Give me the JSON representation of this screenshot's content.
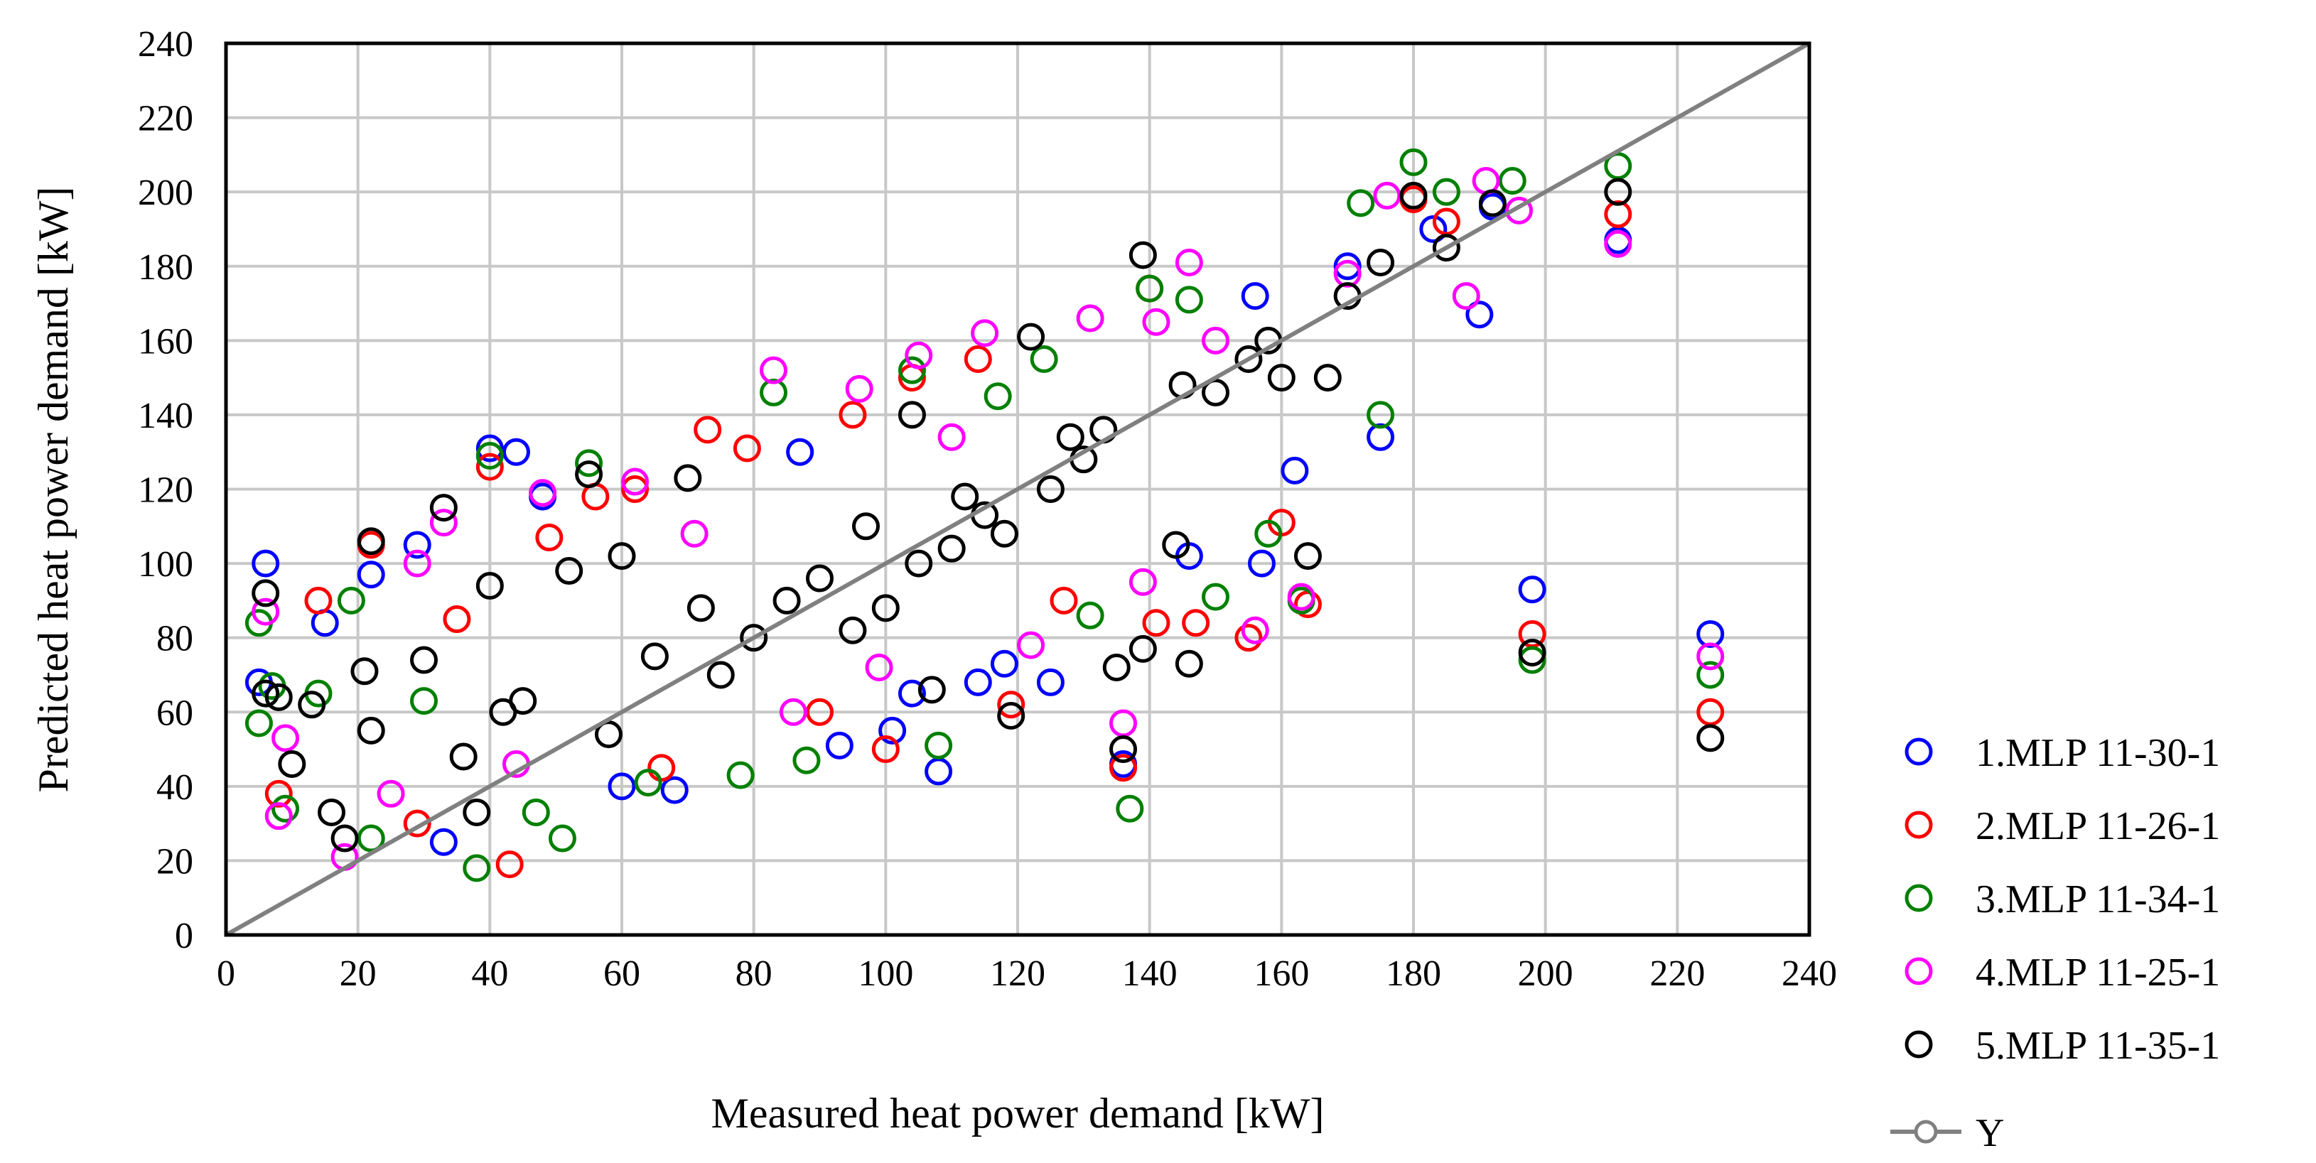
{
  "chart_data": {
    "type": "scatter",
    "title": "",
    "xlabel": "Measured heat power demand [kW]",
    "ylabel": "Predicted heat power demand [kW]",
    "xlim": [
      0,
      240
    ],
    "ylim": [
      0,
      240
    ],
    "x_ticks": [
      "0",
      "20",
      "40",
      "60",
      "80",
      "100",
      "120",
      "140",
      "160",
      "180",
      "200",
      "220",
      "240"
    ],
    "y_ticks": [
      "0",
      "20",
      "40",
      "60",
      "80",
      "100",
      "120",
      "140",
      "160",
      "180",
      "200",
      "220",
      "240"
    ],
    "grid": true,
    "legend_position": "right",
    "series": [
      {
        "name": "1.MLP 11-30-1",
        "color": "#0000ff",
        "marker": "open-circle",
        "points": [
          [
            6,
            100
          ],
          [
            5,
            68
          ],
          [
            15,
            84
          ],
          [
            22,
            97
          ],
          [
            29,
            105
          ],
          [
            40,
            131
          ],
          [
            48,
            118
          ],
          [
            87,
            130
          ],
          [
            93,
            51
          ],
          [
            101,
            55
          ],
          [
            114,
            68
          ],
          [
            125,
            68
          ],
          [
            136,
            46
          ],
          [
            156,
            172
          ],
          [
            162,
            125
          ],
          [
            175,
            134
          ],
          [
            190,
            167
          ],
          [
            198,
            93
          ],
          [
            211,
            187
          ],
          [
            225,
            81
          ],
          [
            192,
            196
          ],
          [
            170,
            180
          ],
          [
            146,
            102
          ],
          [
            33,
            25
          ],
          [
            44,
            130
          ],
          [
            68,
            39
          ],
          [
            60,
            40
          ],
          [
            118,
            73
          ],
          [
            104,
            65
          ],
          [
            157,
            100
          ],
          [
            183,
            190
          ],
          [
            108,
            44
          ]
        ]
      },
      {
        "name": "2.MLP 11-26-1",
        "color": "#ff0000",
        "marker": "open-circle",
        "points": [
          [
            8,
            38
          ],
          [
            14,
            90
          ],
          [
            22,
            105
          ],
          [
            40,
            126
          ],
          [
            43,
            19
          ],
          [
            49,
            107
          ],
          [
            56,
            118
          ],
          [
            73,
            136
          ],
          [
            79,
            131
          ],
          [
            100,
            50
          ],
          [
            114,
            155
          ],
          [
            119,
            62
          ],
          [
            140,
            174
          ],
          [
            141,
            84
          ],
          [
            147,
            84
          ],
          [
            160,
            111
          ],
          [
            164,
            89
          ],
          [
            185,
            192
          ],
          [
            198,
            81
          ],
          [
            211,
            194
          ],
          [
            225,
            60
          ],
          [
            29,
            30
          ],
          [
            35,
            85
          ],
          [
            62,
            120
          ],
          [
            95,
            140
          ],
          [
            127,
            90
          ],
          [
            155,
            80
          ],
          [
            180,
            198
          ],
          [
            136,
            45
          ],
          [
            104,
            150
          ],
          [
            66,
            45
          ],
          [
            90,
            60
          ]
        ]
      },
      {
        "name": "3.MLP 11-34-1",
        "color": "#008000",
        "marker": "open-circle",
        "points": [
          [
            5,
            84
          ],
          [
            5,
            57
          ],
          [
            9,
            34
          ],
          [
            14,
            65
          ],
          [
            22,
            26
          ],
          [
            38,
            18
          ],
          [
            40,
            129
          ],
          [
            51,
            26
          ],
          [
            55,
            127
          ],
          [
            78,
            43
          ],
          [
            83,
            146
          ],
          [
            104,
            152
          ],
          [
            108,
            51
          ],
          [
            124,
            155
          ],
          [
            137,
            34
          ],
          [
            140,
            174
          ],
          [
            146,
            171
          ],
          [
            158,
            108
          ],
          [
            163,
            90
          ],
          [
            172,
            197
          ],
          [
            180,
            208
          ],
          [
            195,
            203
          ],
          [
            198,
            74
          ],
          [
            211,
            207
          ],
          [
            225,
            70
          ],
          [
            19,
            90
          ],
          [
            30,
            63
          ],
          [
            88,
            47
          ],
          [
            117,
            145
          ],
          [
            150,
            91
          ],
          [
            185,
            200
          ],
          [
            47,
            33
          ],
          [
            7,
            67
          ],
          [
            64,
            41
          ],
          [
            131,
            86
          ],
          [
            175,
            140
          ]
        ]
      },
      {
        "name": "4.MLP 11-25-1",
        "color": "#ff00ff",
        "marker": "open-circle",
        "points": [
          [
            6,
            87
          ],
          [
            8,
            32
          ],
          [
            18,
            21
          ],
          [
            29,
            100
          ],
          [
            33,
            111
          ],
          [
            48,
            119
          ],
          [
            62,
            122
          ],
          [
            83,
            152
          ],
          [
            96,
            147
          ],
          [
            105,
            156
          ],
          [
            115,
            162
          ],
          [
            131,
            166
          ],
          [
            136,
            57
          ],
          [
            141,
            165
          ],
          [
            146,
            181
          ],
          [
            156,
            82
          ],
          [
            163,
            91
          ],
          [
            176,
            199
          ],
          [
            188,
            172
          ],
          [
            191,
            203
          ],
          [
            196,
            195
          ],
          [
            211,
            186
          ],
          [
            225,
            75
          ],
          [
            25,
            38
          ],
          [
            71,
            108
          ],
          [
            99,
            72
          ],
          [
            122,
            78
          ],
          [
            150,
            160
          ],
          [
            44,
            46
          ],
          [
            86,
            60
          ],
          [
            110,
            134
          ],
          [
            9,
            53
          ],
          [
            170,
            178
          ],
          [
            139,
            95
          ]
        ]
      },
      {
        "name": "5.MLP 11-35-1",
        "color": "#000000",
        "marker": "open-circle",
        "points": [
          [
            6,
            92
          ],
          [
            6,
            65
          ],
          [
            8,
            64
          ],
          [
            10,
            46
          ],
          [
            13,
            62
          ],
          [
            16,
            33
          ],
          [
            18,
            26
          ],
          [
            21,
            71
          ],
          [
            22,
            106
          ],
          [
            22,
            55
          ],
          [
            33,
            115
          ],
          [
            36,
            48
          ],
          [
            40,
            94
          ],
          [
            42,
            60
          ],
          [
            52,
            98
          ],
          [
            55,
            124
          ],
          [
            60,
            102
          ],
          [
            70,
            123
          ],
          [
            80,
            80
          ],
          [
            90,
            96
          ],
          [
            97,
            110
          ],
          [
            100,
            88
          ],
          [
            104,
            140
          ],
          [
            110,
            104
          ],
          [
            115,
            113
          ],
          [
            119,
            59
          ],
          [
            122,
            161
          ],
          [
            130,
            128
          ],
          [
            135,
            72
          ],
          [
            136,
            50
          ],
          [
            139,
            183
          ],
          [
            139,
            77
          ],
          [
            146,
            73
          ],
          [
            150,
            146
          ],
          [
            155,
            155
          ],
          [
            160,
            150
          ],
          [
            164,
            102
          ],
          [
            170,
            172
          ],
          [
            175,
            181
          ],
          [
            180,
            199
          ],
          [
            185,
            185
          ],
          [
            192,
            197
          ],
          [
            198,
            76
          ],
          [
            211,
            200
          ],
          [
            225,
            53
          ],
          [
            30,
            74
          ],
          [
            45,
            63
          ],
          [
            65,
            75
          ],
          [
            75,
            70
          ],
          [
            85,
            90
          ],
          [
            95,
            82
          ],
          [
            105,
            100
          ],
          [
            112,
            118
          ],
          [
            125,
            120
          ],
          [
            128,
            134
          ],
          [
            145,
            148
          ],
          [
            158,
            160
          ],
          [
            167,
            150
          ],
          [
            107,
            66
          ],
          [
            144,
            105
          ],
          [
            38,
            33
          ],
          [
            58,
            54
          ],
          [
            72,
            88
          ],
          [
            118,
            108
          ],
          [
            133,
            136
          ]
        ]
      }
    ],
    "reference_line": {
      "name": "Y",
      "color": "#808080",
      "points": [
        [
          0,
          0
        ],
        [
          240,
          240
        ]
      ]
    }
  }
}
